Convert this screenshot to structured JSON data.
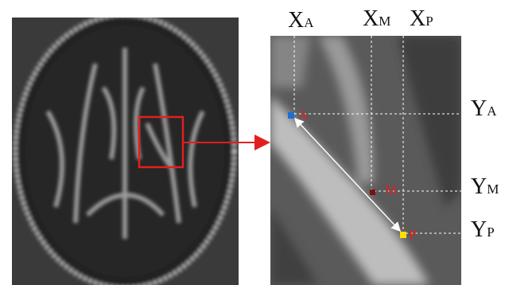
{
  "column_labels": [
    {
      "letter": "X",
      "subscript": "A"
    },
    {
      "letter": "X",
      "subscript": "M"
    },
    {
      "letter": "X",
      "subscript": "P"
    }
  ],
  "row_labels": [
    {
      "letter": "Y",
      "subscript": "A"
    },
    {
      "letter": "Y",
      "subscript": "M"
    },
    {
      "letter": "Y",
      "subscript": "P"
    }
  ],
  "points": [
    {
      "label": "A"
    },
    {
      "label": "M"
    },
    {
      "label": "P"
    }
  ]
}
